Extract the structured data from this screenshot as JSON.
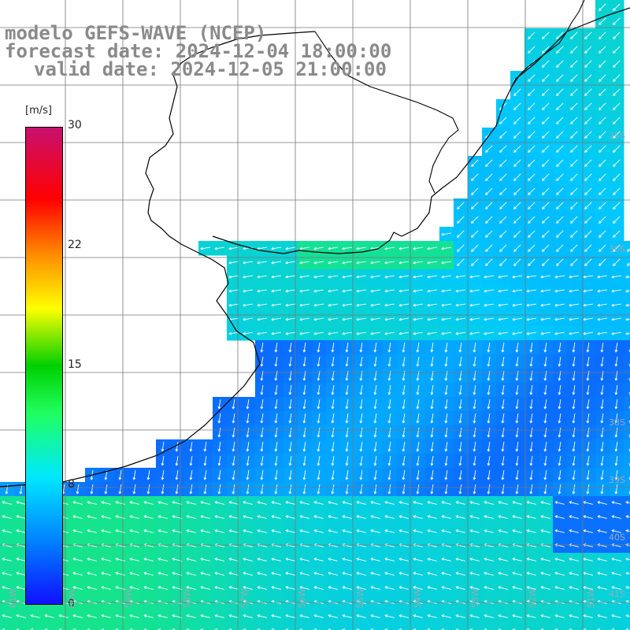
{
  "title": {
    "line1": "modelo GEFS-WAVE (NCEP)",
    "line2": "forecast date: 2024-12-04 18:00:00",
    "line3": "valid date: 2024-12-05 21:00:00"
  },
  "colorbar": {
    "unit": "[m/s]",
    "ticks": [
      "30",
      "22",
      "15",
      "8",
      "0"
    ],
    "colors": [
      "#1010ff",
      "#0080ff",
      "#00e8ff",
      "#20ff60",
      "#00d000",
      "#ffff00",
      "#ff8c00",
      "#ff0000",
      "#c8106e"
    ]
  },
  "lat_labels": [
    "25S",
    "30S",
    "38S",
    "39S",
    "40S",
    "41S"
  ],
  "lon_labels": [
    "61W",
    "60W",
    "59W",
    "58W",
    "57W",
    "56W",
    "55W",
    "54W",
    "53W",
    "52W",
    "51W"
  ],
  "colors": {
    "land": "#ffffff",
    "grid": "#777777",
    "coast": "#000000",
    "label": "#8a8a8a"
  }
}
